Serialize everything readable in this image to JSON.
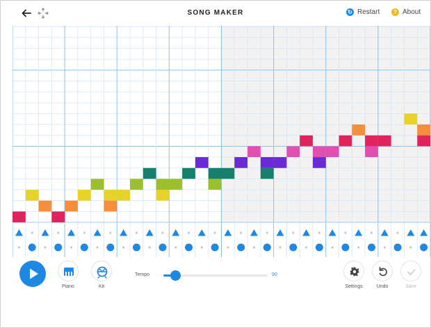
{
  "header": {
    "title": "SONG MAKER",
    "restart_label": "Restart",
    "about_label": "About",
    "restart_color": "#1e88e5",
    "about_color": "#f5b81c"
  },
  "grid": {
    "columns": 32,
    "melody_rows": 14,
    "beats_per_bar": 4,
    "visible_bars": 4,
    "notes": [
      {
        "col": 0,
        "row": 0,
        "color": "#e0245e"
      },
      {
        "col": 1,
        "row": 2,
        "color": "#e8d22a"
      },
      {
        "col": 2,
        "row": 1,
        "color": "#f58f3c"
      },
      {
        "col": 3,
        "row": 0,
        "color": "#e0245e"
      },
      {
        "col": 4,
        "row": 1,
        "color": "#f58f3c"
      },
      {
        "col": 5,
        "row": 2,
        "color": "#e8d22a"
      },
      {
        "col": 6,
        "row": 3,
        "color": "#9cbf2e"
      },
      {
        "col": 7,
        "row": 2,
        "color": "#e8d22a"
      },
      {
        "col": 7,
        "row": 1,
        "color": "#f58f3c"
      },
      {
        "col": 8,
        "row": 2,
        "color": "#e8d22a"
      },
      {
        "col": 9,
        "row": 3,
        "color": "#9cbf2e"
      },
      {
        "col": 10,
        "row": 4,
        "color": "#15806b"
      },
      {
        "col": 11,
        "row": 3,
        "color": "#9cbf2e"
      },
      {
        "col": 11,
        "row": 2,
        "color": "#e8d22a"
      },
      {
        "col": 12,
        "row": 3,
        "color": "#9cbf2e"
      },
      {
        "col": 13,
        "row": 4,
        "color": "#15806b"
      },
      {
        "col": 14,
        "row": 5,
        "color": "#6a2bd6"
      },
      {
        "col": 15,
        "row": 4,
        "color": "#15806b"
      },
      {
        "col": 15,
        "row": 3,
        "color": "#9cbf2e"
      },
      {
        "col": 16,
        "row": 4,
        "color": "#15806b"
      },
      {
        "col": 17,
        "row": 5,
        "color": "#6a2bd6"
      },
      {
        "col": 18,
        "row": 6,
        "color": "#e14fb0"
      },
      {
        "col": 19,
        "row": 5,
        "color": "#6a2bd6"
      },
      {
        "col": 19,
        "row": 4,
        "color": "#15806b"
      },
      {
        "col": 20,
        "row": 5,
        "color": "#6a2bd6"
      },
      {
        "col": 21,
        "row": 6,
        "color": "#e14fb0"
      },
      {
        "col": 22,
        "row": 7,
        "color": "#e0245e"
      },
      {
        "col": 23,
        "row": 6,
        "color": "#e14fb0"
      },
      {
        "col": 23,
        "row": 5,
        "color": "#6a2bd6"
      },
      {
        "col": 24,
        "row": 6,
        "color": "#e14fb0"
      },
      {
        "col": 25,
        "row": 7,
        "color": "#e0245e"
      },
      {
        "col": 26,
        "row": 8,
        "color": "#f58f3c"
      },
      {
        "col": 27,
        "row": 7,
        "color": "#e0245e"
      },
      {
        "col": 27,
        "row": 6,
        "color": "#e14fb0"
      },
      {
        "col": 28,
        "row": 7,
        "color": "#e0245e"
      },
      {
        "col": 30,
        "row": 9,
        "color": "#e8d22a"
      },
      {
        "col": 31,
        "row": 8,
        "color": "#f58f3c"
      },
      {
        "col": 31,
        "row": 7,
        "color": "#e0245e"
      }
    ],
    "triangle_beats": [
      0,
      2,
      4,
      6,
      8,
      10,
      12,
      14,
      16,
      18,
      20,
      22,
      24,
      26,
      28,
      30,
      31
    ],
    "circle_beats": [
      1,
      3,
      5,
      7,
      9,
      11,
      13,
      15,
      17,
      19,
      21,
      23,
      25,
      27,
      29,
      31
    ],
    "colors": {
      "line": "#d6e6f5",
      "bar_line": "#88c3ec",
      "shade": "#f2f2f2",
      "percussion": "#1e88e5",
      "dot": "#c8c8c8"
    }
  },
  "controls": {
    "piano_label": "Piano",
    "kit_label": "Kit",
    "tempo_label": "Tempo",
    "tempo_value": "90",
    "tempo_fraction": 0.11,
    "settings_label": "Settings",
    "undo_label": "Undo",
    "save_label": "Save"
  }
}
